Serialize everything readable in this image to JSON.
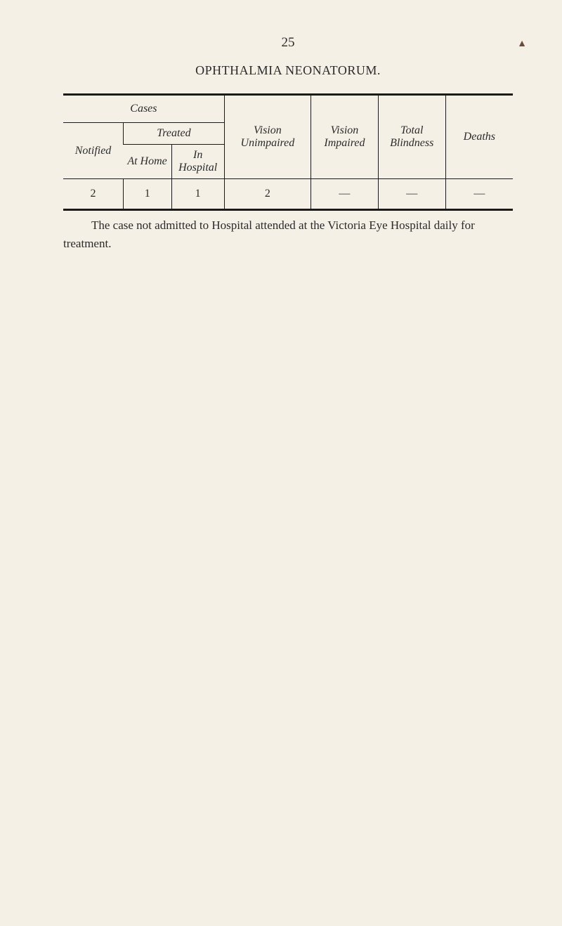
{
  "page_number": "25",
  "page_mark": "▲",
  "title": "OPHTHALMIA NEONATORUM.",
  "table": {
    "header_top": {
      "cases": "Cases"
    },
    "header_mid": {
      "notified": "Notified",
      "treated": "Treated",
      "vision_unimpaired": "Vision Unimpaired",
      "vision_impaired": "Vision Impaired",
      "total_blindness": "Total Blindness",
      "deaths": "Deaths"
    },
    "header_sub": {
      "at_home": "At Home",
      "in_hospital": "In Hospital"
    },
    "data": {
      "notified": "2",
      "at_home": "1",
      "in_hospital": "1",
      "vision_unimpaired": "2",
      "vision_impaired": "—",
      "total_blindness": "—",
      "deaths": "—"
    }
  },
  "note": "The case not admitted to Hospital attended at the Victoria Eye Hospital daily for treatment.",
  "styles": {
    "background_color": "#f5f0e6",
    "text_color": "#2a2a2a",
    "border_color": "#1a1a1a",
    "page_number_fontsize": 19,
    "title_fontsize": 18,
    "body_fontsize": 17,
    "table_header_fontsize": 16,
    "thick_rule_width": 3,
    "thin_rule_width": 1
  }
}
